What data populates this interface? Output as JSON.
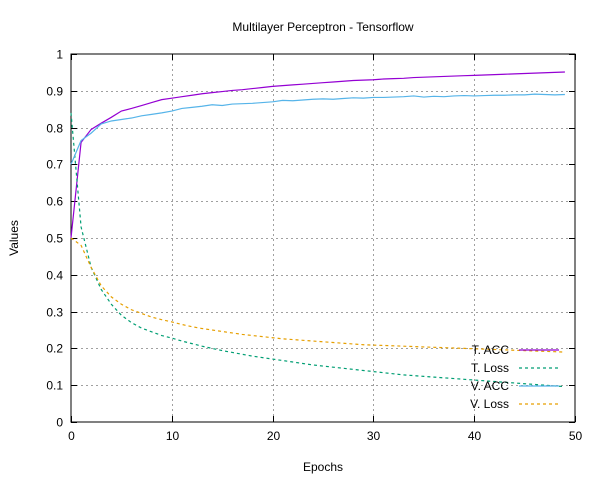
{
  "chart_data": {
    "type": "line",
    "title": "Multilayer Perceptron - Tensorflow",
    "xlabel": "Epochs",
    "ylabel": "Values",
    "xlim": [
      0,
      50
    ],
    "ylim": [
      0,
      1
    ],
    "x_ticks": [
      0,
      10,
      20,
      30,
      40,
      50
    ],
    "y_ticks": [
      0,
      0.1,
      0.2,
      0.3,
      0.4,
      0.5,
      0.6,
      0.7,
      0.8,
      0.9,
      1
    ],
    "x_tick_labels": [
      "0",
      "10",
      "20",
      "30",
      "40",
      "50"
    ],
    "y_tick_labels": [
      "0",
      "0.1",
      "0.2",
      "0.3",
      "0.4",
      "0.5",
      "0.6",
      "0.7",
      "0.8",
      "0.9",
      "1"
    ],
    "grid": true,
    "legend_position": "bottom-right",
    "x": [
      0,
      1,
      2,
      3,
      4,
      5,
      6,
      7,
      8,
      9,
      10,
      11,
      12,
      13,
      14,
      15,
      16,
      17,
      18,
      19,
      20,
      21,
      22,
      23,
      24,
      25,
      26,
      27,
      28,
      29,
      30,
      31,
      32,
      33,
      34,
      35,
      36,
      37,
      38,
      39,
      40,
      41,
      42,
      43,
      44,
      45,
      46,
      47,
      48,
      49
    ],
    "series": [
      {
        "name": "T. ACC",
        "color": "#9400d3",
        "dash": "solid",
        "values": [
          0.5,
          0.76,
          0.795,
          0.812,
          0.828,
          0.845,
          0.852,
          0.86,
          0.868,
          0.876,
          0.88,
          0.884,
          0.888,
          0.892,
          0.895,
          0.898,
          0.901,
          0.903,
          0.906,
          0.909,
          0.912,
          0.914,
          0.916,
          0.918,
          0.92,
          0.922,
          0.924,
          0.926,
          0.928,
          0.929,
          0.93,
          0.932,
          0.933,
          0.934,
          0.936,
          0.937,
          0.938,
          0.939,
          0.94,
          0.941,
          0.942,
          0.943,
          0.944,
          0.945,
          0.946,
          0.947,
          0.948,
          0.949,
          0.95,
          0.951
        ]
      },
      {
        "name": "T. Loss",
        "color": "#009e73",
        "dash": "dashed",
        "values": [
          0.84,
          0.53,
          0.42,
          0.36,
          0.32,
          0.29,
          0.27,
          0.255,
          0.245,
          0.235,
          0.228,
          0.22,
          0.213,
          0.206,
          0.2,
          0.194,
          0.189,
          0.184,
          0.179,
          0.175,
          0.171,
          0.167,
          0.163,
          0.159,
          0.155,
          0.152,
          0.149,
          0.146,
          0.143,
          0.14,
          0.137,
          0.134,
          0.131,
          0.128,
          0.126,
          0.124,
          0.122,
          0.12,
          0.118,
          0.116,
          0.114,
          0.112,
          0.11,
          0.108,
          0.106,
          0.104,
          0.102,
          0.1,
          0.098,
          0.096
        ]
      },
      {
        "name": "V. ACC",
        "color": "#56b4e9",
        "dash": "solid",
        "values": [
          0.7,
          0.765,
          0.785,
          0.81,
          0.818,
          0.822,
          0.826,
          0.832,
          0.836,
          0.84,
          0.845,
          0.852,
          0.855,
          0.858,
          0.862,
          0.86,
          0.864,
          0.865,
          0.866,
          0.868,
          0.87,
          0.874,
          0.873,
          0.875,
          0.877,
          0.878,
          0.877,
          0.879,
          0.881,
          0.88,
          0.882,
          0.882,
          0.883,
          0.884,
          0.886,
          0.883,
          0.885,
          0.884,
          0.886,
          0.887,
          0.886,
          0.887,
          0.888,
          0.888,
          0.889,
          0.889,
          0.891,
          0.89,
          0.889,
          0.89
        ]
      },
      {
        "name": "V. Loss",
        "color": "#e69f00",
        "dash": "dashed",
        "values": [
          0.5,
          0.48,
          0.42,
          0.37,
          0.34,
          0.32,
          0.305,
          0.295,
          0.285,
          0.278,
          0.272,
          0.265,
          0.259,
          0.254,
          0.25,
          0.246,
          0.242,
          0.238,
          0.235,
          0.232,
          0.229,
          0.226,
          0.224,
          0.222,
          0.22,
          0.218,
          0.216,
          0.214,
          0.212,
          0.21,
          0.209,
          0.208,
          0.207,
          0.206,
          0.205,
          0.204,
          0.203,
          0.202,
          0.201,
          0.2,
          0.199,
          0.198,
          0.197,
          0.196,
          0.195,
          0.194,
          0.193,
          0.192,
          0.191,
          0.19
        ]
      }
    ]
  }
}
